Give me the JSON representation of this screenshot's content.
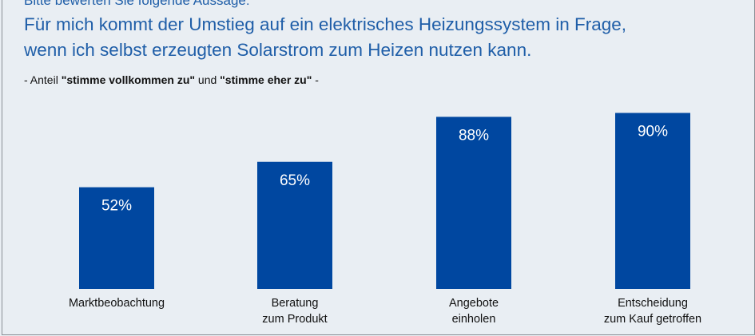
{
  "chart_data": {
    "type": "bar",
    "pretitle": "Bitte bewerten Sie folgende Aussage:",
    "title_lines": [
      "Für mich kommt der Umstieg auf ein elektrisches Heizungssystem in Frage,",
      "wenn ich selbst erzeugten Solarstrom zum Heizen nutzen kann."
    ],
    "subtitle": {
      "prefix": "- Anteil ",
      "bold1": "\"stimme vollkommen zu\"",
      "middle": " und ",
      "bold2": "\"stimme eher zu\"",
      "suffix": " -"
    },
    "categories": [
      [
        "Marktbeobachtung"
      ],
      [
        "Beratung",
        "zum Produkt"
      ],
      [
        "Angebote",
        "einholen"
      ],
      [
        "Entscheidung",
        "zum Kauf getroffen"
      ]
    ],
    "values": [
      52,
      65,
      88,
      90
    ],
    "data_labels": [
      "52%",
      "65%",
      "88%",
      "90%"
    ],
    "unit": "%",
    "ylim": [
      0,
      100
    ],
    "grid": false,
    "bar_color": "#0047a0",
    "label_color": "#ffffff"
  }
}
